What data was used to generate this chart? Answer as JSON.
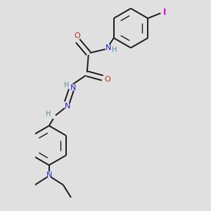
{
  "background_color": "#e0e0e0",
  "bond_color": "#1a1a1a",
  "N_color": "#2222cc",
  "O_color": "#cc2222",
  "I_color": "#dd00dd",
  "H_color": "#558899",
  "figsize": [
    3.0,
    3.0
  ],
  "dpi": 100,
  "xlim": [
    -2.5,
    2.5
  ],
  "ylim": [
    -4.0,
    3.5
  ]
}
